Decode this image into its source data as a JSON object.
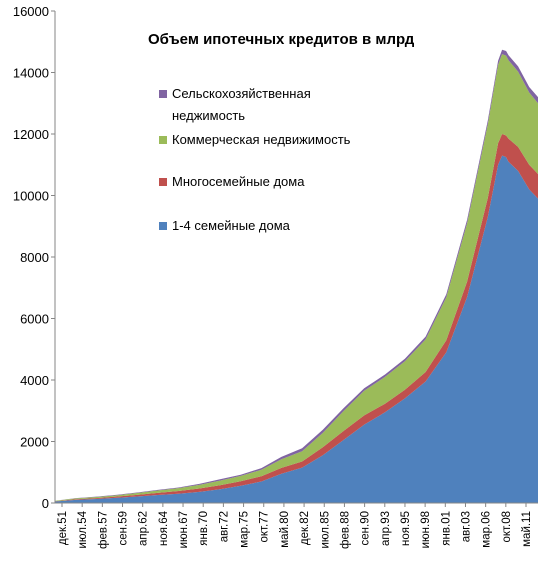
{
  "chart_data": {
    "type": "area",
    "stacked": true,
    "title": "Объем ипотечных кредитов в млрд",
    "xlabel": "",
    "ylabel": "",
    "ylim": [
      0,
      16000
    ],
    "yticks": [
      0,
      2000,
      4000,
      6000,
      8000,
      10000,
      12000,
      14000,
      16000
    ],
    "xtick_labels": [
      "дек.51",
      "июл.54",
      "фев.57",
      "сен.59",
      "апр.62",
      "ноя.64",
      "июн.67",
      "янв.70",
      "авг.72",
      "мар.75",
      "окт.77",
      "май.80",
      "дек.82",
      "июл.85",
      "фев.88",
      "сен.90",
      "апр.93",
      "ноя.95",
      "июн.98",
      "янв.01",
      "авг.03",
      "мар.06",
      "окт.08",
      "май.11"
    ],
    "x": [
      1951.9,
      1954.5,
      1957.1,
      1959.7,
      1962.2,
      1964.8,
      1967.4,
      1970.0,
      1972.6,
      1975.2,
      1977.8,
      1980.3,
      1982.9,
      1985.5,
      1988.1,
      1990.7,
      1993.3,
      1995.8,
      1998.4,
      2001.0,
      2003.6,
      2006.2,
      2007.5,
      2008.0,
      2008.5,
      2008.8,
      2010.0,
      2011.4,
      2012.5
    ],
    "series": [
      {
        "name": "1-4 семейные дома",
        "color": "#4f81bd",
        "values": [
          50,
          100,
          130,
          170,
          210,
          260,
          300,
          360,
          450,
          560,
          700,
          950,
          1150,
          1550,
          2050,
          2550,
          2950,
          3400,
          3950,
          4900,
          6700,
          9300,
          11000,
          11300,
          11250,
          11100,
          10800,
          10200,
          9900
        ]
      },
      {
        "name": "Многосемейные дома",
        "color": "#c0504d",
        "values": [
          10,
          25,
          30,
          40,
          55,
          70,
          90,
          110,
          130,
          150,
          170,
          190,
          200,
          260,
          290,
          300,
          280,
          280,
          310,
          390,
          500,
          620,
          700,
          700,
          700,
          750,
          780,
          800,
          800
        ]
      },
      {
        "name": "Коммерческая недвижимость",
        "color": "#9bbb59",
        "values": [
          10,
          25,
          35,
          45,
          60,
          75,
          95,
          120,
          150,
          170,
          210,
          280,
          330,
          470,
          650,
          800,
          870,
          930,
          1060,
          1400,
          1900,
          2400,
          2550,
          2600,
          2600,
          2550,
          2450,
          2350,
          2300
        ]
      },
      {
        "name": "Сельскохозяйственная\nнеджимость",
        "color": "#8064a2",
        "values": [
          5,
          8,
          12,
          15,
          18,
          20,
          20,
          30,
          40,
          40,
          55,
          80,
          100,
          100,
          90,
          80,
          80,
          80,
          90,
          100,
          110,
          120,
          130,
          140,
          150,
          160,
          170,
          180,
          200
        ]
      }
    ],
    "legend_order": [
      3,
      2,
      1,
      0
    ],
    "legend_placement": "inside-top-left",
    "grid": false
  }
}
